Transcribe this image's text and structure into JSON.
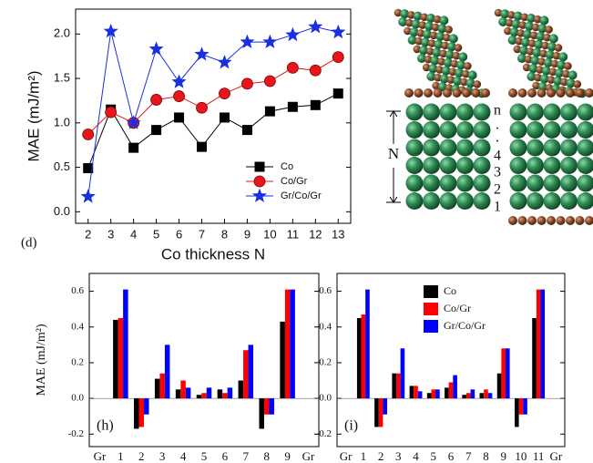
{
  "chart_data": [
    {
      "type": "line",
      "panel_label": "(d)",
      "x_label": "Co thickness N",
      "y_label": "MAE (mJ/m²)",
      "x": [
        2,
        3,
        4,
        5,
        6,
        7,
        8,
        9,
        10,
        11,
        12,
        13
      ],
      "xlim": [
        1.45,
        13.55
      ],
      "xticks": [
        2,
        3,
        4,
        5,
        6,
        7,
        8,
        9,
        10,
        11,
        12,
        13
      ],
      "ylim": [
        -0.13,
        2.28
      ],
      "yticks": [
        {
          "value": 0,
          "label": "0.0"
        },
        0.5,
        {
          "value": 1,
          "label": "1.0"
        },
        1.5,
        {
          "value": 2,
          "label": "2.0"
        }
      ],
      "legend": "lower right",
      "series": [
        {
          "name": "Co",
          "color": "#000000",
          "marker": "square",
          "values": [
            0.49,
            1.15,
            0.72,
            0.92,
            1.06,
            0.73,
            1.06,
            0.92,
            1.13,
            1.18,
            1.2,
            1.33
          ]
        },
        {
          "name": "Co/Gr",
          "color": "#e8161a",
          "marker": "circle",
          "values": [
            0.87,
            1.12,
            1.0,
            1.26,
            1.3,
            1.17,
            1.33,
            1.44,
            1.47,
            1.62,
            1.59,
            1.74
          ]
        },
        {
          "name": "Gr/Co/Gr",
          "color": "#1a2fe0",
          "marker": "star",
          "values": [
            0.17,
            2.03,
            1.0,
            1.83,
            1.46,
            1.77,
            1.68,
            1.91,
            1.91,
            1.99,
            2.08,
            2.02
          ]
        }
      ]
    },
    {
      "type": "bar",
      "panel_label": "(h)",
      "y_label": "MAE (mJ/m²)",
      "categories": [
        "Gr",
        "1",
        "2",
        "3",
        "4",
        "5",
        "6",
        "7",
        "8",
        "9",
        "Gr"
      ],
      "ylim": [
        -0.27,
        0.7
      ],
      "yticks": [
        -0.2,
        {
          "value": 0,
          "label": "0.0"
        },
        0.2,
        0.4,
        0.6
      ],
      "series": [
        {
          "color": "#000000",
          "values": [
            null,
            0.44,
            -0.17,
            0.11,
            0.05,
            0.02,
            0.05,
            0.1,
            -0.17,
            0.43,
            null
          ]
        },
        {
          "color": "#ff0000",
          "values": [
            null,
            0.45,
            -0.16,
            0.14,
            0.1,
            0.03,
            0.03,
            0.27,
            -0.09,
            0.61,
            null
          ]
        },
        {
          "color": "#0000ff",
          "values": [
            null,
            0.61,
            -0.09,
            0.3,
            0.06,
            0.06,
            0.06,
            0.3,
            -0.09,
            0.61,
            null
          ]
        }
      ]
    },
    {
      "type": "bar",
      "panel_label": "(i)",
      "categories": [
        "Gr",
        "1",
        "2",
        "3",
        "4",
        "5",
        "6",
        "7",
        "8",
        "9",
        "10",
        "11",
        "Gr"
      ],
      "ylim": [
        -0.27,
        0.7
      ],
      "yticks": [
        -0.2,
        {
          "value": 0,
          "label": "0.0"
        },
        0.2,
        0.4,
        0.6
      ],
      "legend": "upper right",
      "series": [
        {
          "name": "Co",
          "color": "#000000",
          "values": [
            null,
            0.45,
            -0.16,
            0.14,
            0.07,
            0.03,
            0.06,
            0.02,
            0.03,
            0.14,
            -0.16,
            0.45,
            null
          ]
        },
        {
          "name": "Co/Gr",
          "color": "#ff0000",
          "values": [
            null,
            0.47,
            -0.16,
            0.14,
            0.07,
            0.05,
            0.09,
            0.03,
            0.05,
            0.28,
            -0.09,
            0.61,
            null
          ]
        },
        {
          "name": "Gr/Co/Gr",
          "color": "#0000ff",
          "values": [
            null,
            0.61,
            -0.09,
            0.28,
            0.04,
            0.05,
            0.13,
            0.05,
            0.03,
            0.28,
            -0.09,
            0.61,
            null
          ]
        }
      ]
    }
  ],
  "illustration": {
    "layer_labels": [
      "n",
      ".",
      ".",
      "4",
      "3",
      "2",
      "1"
    ],
    "thickness_label": "N"
  }
}
